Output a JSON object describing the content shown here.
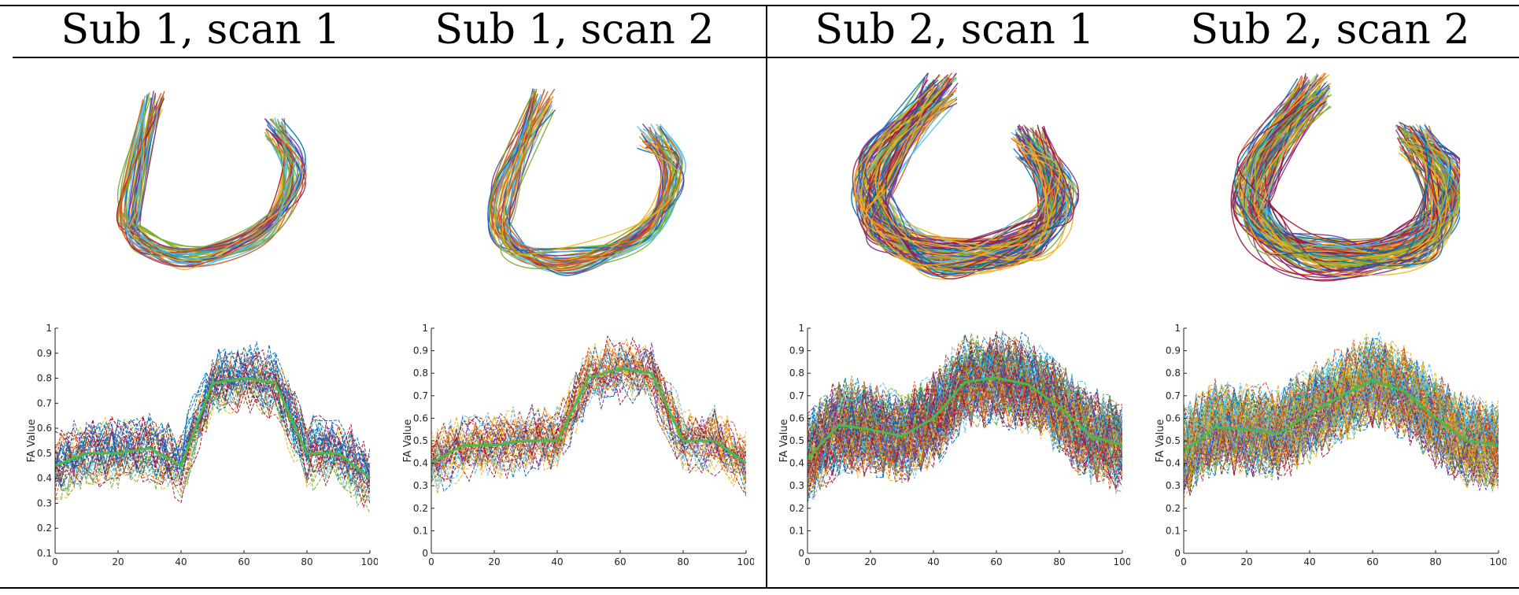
{
  "figure": {
    "columns": [
      {
        "title": "Sub 1, scan 1",
        "ylabel": "FA Value",
        "ylim": [
          0.1,
          1.0
        ],
        "yticks": [
          "0.1",
          "0.2",
          "0.3",
          "0.4",
          "0.5",
          "0.6",
          "0.7",
          "0.8",
          "0.9",
          "1"
        ]
      },
      {
        "title": "Sub 1, scan 2",
        "ylabel": "FA Value",
        "ylim": [
          0,
          1.0
        ],
        "yticks": [
          "0",
          "0.1",
          "0.2",
          "0.3",
          "0.4",
          "0.5",
          "0.6",
          "0.7",
          "0.8",
          "0.9",
          "1"
        ]
      },
      {
        "title": "Sub 2, scan 1",
        "ylabel": "FA Value",
        "ylim": [
          0,
          1.0
        ],
        "yticks": [
          "0",
          "0.1",
          "0.2",
          "0.3",
          "0.4",
          "0.5",
          "0.6",
          "0.7",
          "0.8",
          "0.9",
          "1"
        ]
      },
      {
        "title": "Sub 2, scan 2",
        "ylabel": "FA Value",
        "ylim": [
          0,
          1.0
        ],
        "yticks": [
          "0",
          "0.1",
          "0.2",
          "0.3",
          "0.4",
          "0.5",
          "0.6",
          "0.7",
          "0.8",
          "0.9",
          "1"
        ]
      }
    ],
    "xticks": [
      "0",
      "20",
      "40",
      "60",
      "80",
      "100"
    ]
  },
  "chart_data": [
    {
      "type": "line",
      "title": "Sub 1, scan 1",
      "ylabel": "FA Value",
      "xlim": [
        0,
        100
      ],
      "ylim": [
        0.1,
        1.0
      ],
      "x": [
        0,
        10,
        20,
        30,
        40,
        50,
        60,
        70,
        80,
        90,
        100
      ],
      "series": [
        {
          "values": [
            0.45,
            0.5,
            0.5,
            0.52,
            0.45,
            0.78,
            0.8,
            0.78,
            0.5,
            0.5,
            0.4
          ]
        }
      ]
    },
    {
      "type": "line",
      "title": "Sub 1, scan 2",
      "ylabel": "FA Value",
      "xlim": [
        0,
        100
      ],
      "ylim": [
        0,
        1.0
      ],
      "x": [
        0,
        10,
        20,
        30,
        40,
        50,
        60,
        70,
        80,
        90,
        100
      ],
      "series": [
        {
          "values": [
            0.4,
            0.48,
            0.48,
            0.5,
            0.5,
            0.78,
            0.82,
            0.8,
            0.5,
            0.5,
            0.4
          ]
        }
      ]
    },
    {
      "type": "line",
      "title": "Sub 2, scan 1",
      "ylabel": "FA Value",
      "xlim": [
        0,
        100
      ],
      "ylim": [
        0,
        1.0
      ],
      "x": [
        0,
        10,
        20,
        30,
        40,
        50,
        60,
        70,
        80,
        90,
        100
      ],
      "series": [
        {
          "values": [
            0.42,
            0.57,
            0.55,
            0.52,
            0.6,
            0.76,
            0.78,
            0.75,
            0.65,
            0.52,
            0.48
          ]
        }
      ]
    },
    {
      "type": "line",
      "title": "Sub 2, scan 2",
      "ylabel": "FA Value",
      "xlim": [
        0,
        100
      ],
      "ylim": [
        0,
        1.0
      ],
      "x": [
        0,
        10,
        20,
        30,
        40,
        50,
        60,
        70,
        80,
        90,
        100
      ],
      "series": [
        {
          "values": [
            0.45,
            0.56,
            0.55,
            0.53,
            0.62,
            0.7,
            0.77,
            0.72,
            0.6,
            0.5,
            0.48
          ]
        }
      ]
    }
  ]
}
